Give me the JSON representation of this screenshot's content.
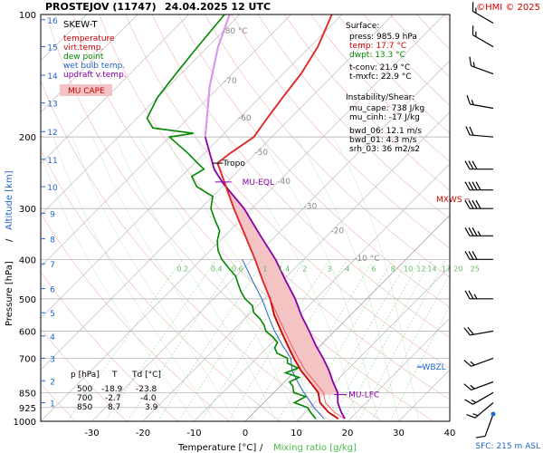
{
  "header": {
    "station": "PROSTEJOV (11747)",
    "datetime": "24.04.2025 12 UTC",
    "copyright": "©HMI © 2025"
  },
  "chart_data": {
    "type": "skew-t log-p sounding",
    "title": "PROSTEJOV (11747)   24.04.2025 12 UTC",
    "xlabel": "Temperature [°C]",
    "xlabel_sep": "/",
    "xlabel2": "Mixing ratio [g/kg]",
    "ylabel": "Pressure [hPa]",
    "ylabel_sep": "/",
    "ylabel2": "Altitude [km]",
    "xlim": [
      -40,
      40
    ],
    "ylim": [
      1000,
      100
    ],
    "pressure_ticks": [
      100,
      200,
      300,
      400,
      500,
      600,
      700,
      850,
      925,
      1000
    ],
    "temp_ticks": [
      -30,
      -20,
      -10,
      0,
      10,
      20,
      30,
      40
    ],
    "altitude_ticks": [
      {
        "km": "1",
        "p": 900
      },
      {
        "km": "2",
        "p": 795
      },
      {
        "km": "3",
        "p": 700
      },
      {
        "km": "4",
        "p": 617
      },
      {
        "km": "5",
        "p": 541
      },
      {
        "km": "6",
        "p": 472
      },
      {
        "km": "7",
        "p": 410
      },
      {
        "km": "8",
        "p": 356
      },
      {
        "km": "9",
        "p": 308
      },
      {
        "km": "10",
        "p": 265
      },
      {
        "km": "11",
        "p": 227
      },
      {
        "km": "12",
        "p": 194
      },
      {
        "km": "13",
        "p": 165
      },
      {
        "km": "14",
        "p": 141
      },
      {
        "km": "15",
        "p": 120
      },
      {
        "km": "16",
        "p": 103
      }
    ],
    "isotherm_labels": [
      "-80 °C",
      "-70",
      "-60",
      "-50",
      "-40",
      "-30",
      "-20",
      "-10 °C"
    ],
    "isotherm_label_values": [
      -80,
      -70,
      -60,
      -50,
      -40,
      -30,
      -20,
      -10
    ],
    "mixing_ratio_labels": [
      "0.2",
      "0.4",
      "0.6",
      "1",
      "1.4",
      "2",
      "3",
      "4",
      "6",
      "8",
      "10",
      "12",
      "14",
      "17",
      "20",
      "25"
    ],
    "legend": {
      "title": "SKEW-T",
      "items": [
        {
          "label": "temperature",
          "color": "#cc0000"
        },
        {
          "label": "virt.temp.",
          "color": "#cc0000"
        },
        {
          "label": "dew point",
          "color": "#008800"
        },
        {
          "label": "wet bulb temp.",
          "color": "#2266cc"
        },
        {
          "label": "updraft v.temp.",
          "color": "#8800aa"
        }
      ],
      "cape_label": "MU CAPE"
    },
    "series": [
      {
        "name": "temperature",
        "color": "#cc0000",
        "points": [
          [
            985.9,
            17.7
          ],
          [
            950,
            14.5
          ],
          [
            925,
            12.8
          ],
          [
            900,
            11.0
          ],
          [
            850,
            8.7
          ],
          [
            800,
            5.0
          ],
          [
            750,
            1.0
          ],
          [
            700,
            -2.7
          ],
          [
            650,
            -6.5
          ],
          [
            600,
            -10.5
          ],
          [
            550,
            -14.8
          ],
          [
            500,
            -18.9
          ],
          [
            450,
            -24.0
          ],
          [
            400,
            -29.5
          ],
          [
            350,
            -36.0
          ],
          [
            300,
            -43.5
          ],
          [
            250,
            -52.0
          ],
          [
            232,
            -55.5
          ],
          [
            220,
            -55.0
          ],
          [
            200,
            -53.5
          ],
          [
            180,
            -54.5
          ],
          [
            160,
            -55.5
          ],
          [
            140,
            -56.5
          ],
          [
            120,
            -58.5
          ],
          [
            100,
            -62.0
          ]
        ]
      },
      {
        "name": "dew point",
        "color": "#008800",
        "points": [
          [
            985.9,
            13.3
          ],
          [
            950,
            11.0
          ],
          [
            925,
            9.5
          ],
          [
            900,
            6.0
          ],
          [
            870,
            7.0
          ],
          [
            850,
            3.9
          ],
          [
            820,
            2.5
          ],
          [
            800,
            1.0
          ],
          [
            780,
            2.0
          ],
          [
            760,
            -1.5
          ],
          [
            740,
            0.0
          ],
          [
            720,
            -3.0
          ],
          [
            700,
            -4.0
          ],
          [
            680,
            -7.0
          ],
          [
            660,
            -8.5
          ],
          [
            640,
            -9.0
          ],
          [
            620,
            -11.0
          ],
          [
            600,
            -13.5
          ],
          [
            580,
            -15.0
          ],
          [
            560,
            -17.0
          ],
          [
            540,
            -19.5
          ],
          [
            520,
            -21.0
          ],
          [
            500,
            -23.8
          ],
          [
            480,
            -26.0
          ],
          [
            460,
            -28.0
          ],
          [
            440,
            -30.0
          ],
          [
            420,
            -33.0
          ],
          [
            400,
            -36.0
          ],
          [
            380,
            -38.5
          ],
          [
            360,
            -40.5
          ],
          [
            340,
            -42.0
          ],
          [
            320,
            -45.0
          ],
          [
            300,
            -48.0
          ],
          [
            280,
            -50.0
          ],
          [
            265,
            -55.0
          ],
          [
            250,
            -58.0
          ],
          [
            240,
            -57.0
          ],
          [
            230,
            -60.0
          ],
          [
            220,
            -63.0
          ],
          [
            200,
            -70.0
          ],
          [
            196,
            -66.0
          ],
          [
            190,
            -75.0
          ],
          [
            180,
            -78.0
          ],
          [
            160,
            -80.0
          ],
          [
            140,
            -81.0
          ],
          [
            120,
            -82.0
          ],
          [
            100,
            -83.0
          ]
        ]
      },
      {
        "name": "wet bulb temp.",
        "color": "#2266cc",
        "points": [
          [
            985.9,
            14.9
          ],
          [
            925,
            10.8
          ],
          [
            850,
            5.9
          ],
          [
            800,
            2.6
          ],
          [
            750,
            -0.7
          ],
          [
            700,
            -3.3
          ],
          [
            650,
            -7.5
          ],
          [
            600,
            -11.8
          ],
          [
            550,
            -16.0
          ],
          [
            500,
            -20.5
          ],
          [
            450,
            -26.0
          ],
          [
            400,
            -32.0
          ]
        ]
      },
      {
        "name": "updraft v.temp.",
        "color": "#8800aa",
        "points": [
          [
            985.9,
            19.0
          ],
          [
            950,
            17.0
          ],
          [
            900,
            14.5
          ],
          [
            850,
            12.5
          ],
          [
            800,
            9.5
          ],
          [
            750,
            6.5
          ],
          [
            700,
            3.0
          ],
          [
            650,
            -1.0
          ],
          [
            600,
            -5.0
          ],
          [
            550,
            -9.5
          ],
          [
            500,
            -14.0
          ],
          [
            450,
            -19.5
          ],
          [
            400,
            -25.5
          ],
          [
            350,
            -33.0
          ],
          [
            300,
            -41.5
          ],
          [
            260,
            -50.5
          ],
          [
            240,
            -55.0
          ],
          [
            200,
            -63.0
          ],
          [
            150,
            -72.0
          ],
          [
            120,
            -78.0
          ],
          [
            100,
            -82.0
          ]
        ]
      }
    ],
    "cape_area": {
      "bottom_p": 860,
      "top_p": 258,
      "color": "#f4c4c4"
    },
    "tropopause": {
      "label": "Tropo",
      "p": 232,
      "t": -55.5
    },
    "mu_eql": {
      "label": "MU-EQL",
      "p": 258
    },
    "mu_lfc": {
      "label": "MU-LFC",
      "p": 860
    },
    "mxws": {
      "label": "MXWS",
      "p": 285
    },
    "wbzl": {
      "label": "WBZL",
      "p": 735
    },
    "surface": {
      "title": "Surface:",
      "press": "press: 985.9 hPa",
      "temp": "temp: 17.7 °C",
      "dwpt": "dwpt: 13.3 °C",
      "tconv": "t-conv: 21.9 °C",
      "tmxfc": "t-mxfc: 22.9 °C"
    },
    "instability": {
      "title": "Instability/Shear:",
      "mu_cape": "mu_cape: 738 J/kg",
      "mu_cinh": "mu_cinh: -17 J/kg",
      "bwd06": "bwd_06: 12.1 m/s",
      "bwd01": "bwd_01: 4.3 m/s",
      "srh03": "srh_03: 36 m2/s2"
    },
    "level_table": {
      "headers": [
        "p [hPa]",
        "T",
        "Td [°C]"
      ],
      "rows": [
        [
          "500",
          "-18.9",
          "-23.8"
        ],
        [
          "700",
          "-2.7",
          "-4.0"
        ],
        [
          "850",
          "8.7",
          "3.9"
        ]
      ]
    },
    "wind_barbs": [
      {
        "p": 960,
        "dir": 200,
        "kt": 10
      },
      {
        "p": 900,
        "dir": 230,
        "kt": 15
      },
      {
        "p": 850,
        "dir": 240,
        "kt": 15
      },
      {
        "p": 800,
        "dir": 250,
        "kt": 15
      },
      {
        "p": 700,
        "dir": 250,
        "kt": 15
      },
      {
        "p": 600,
        "dir": 260,
        "kt": 20
      },
      {
        "p": 500,
        "dir": 270,
        "kt": 25
      },
      {
        "p": 400,
        "dir": 270,
        "kt": 30
      },
      {
        "p": 350,
        "dir": 270,
        "kt": 35
      },
      {
        "p": 300,
        "dir": 270,
        "kt": 40
      },
      {
        "p": 270,
        "dir": 270,
        "kt": 40
      },
      {
        "p": 240,
        "dir": 270,
        "kt": 30
      },
      {
        "p": 200,
        "dir": 275,
        "kt": 20
      },
      {
        "p": 170,
        "dir": 280,
        "kt": 15
      },
      {
        "p": 140,
        "dir": 290,
        "kt": 15
      },
      {
        "p": 120,
        "dir": 300,
        "kt": 15
      },
      {
        "p": 105,
        "dir": 300,
        "kt": 15
      }
    ],
    "sfc_label": "SFC: 215 m ASL"
  }
}
